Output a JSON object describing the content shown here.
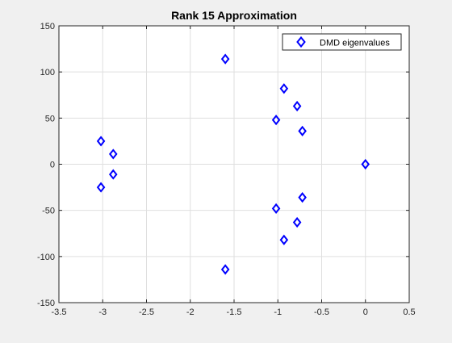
{
  "chart_data": {
    "type": "scatter",
    "title": "Rank 15 Approximation",
    "xlabel": "",
    "ylabel": "",
    "xlim": [
      -3.5,
      0.5
    ],
    "ylim": [
      -150,
      150
    ],
    "xticks": [
      -3.5,
      -3,
      -2.5,
      -2,
      -1.5,
      -1,
      -0.5,
      0,
      0.5
    ],
    "xtick_labels": [
      "-3.5",
      "-3",
      "-2.5",
      "-2",
      "-1.5",
      "-1",
      "-0.5",
      "0",
      "0.5"
    ],
    "yticks": [
      -150,
      -100,
      -50,
      0,
      50,
      100,
      150
    ],
    "ytick_labels": [
      "-150",
      "-100",
      "-50",
      "0",
      "50",
      "100",
      "150"
    ],
    "grid": true,
    "legend_position": "top-right",
    "series": [
      {
        "name": "DMD eigenvalues",
        "color": "#0000ff",
        "marker": "diamond",
        "points": [
          {
            "x": -3.02,
            "y": 25
          },
          {
            "x": -3.02,
            "y": -25
          },
          {
            "x": -2.88,
            "y": 11
          },
          {
            "x": -2.88,
            "y": -11
          },
          {
            "x": -1.6,
            "y": 114
          },
          {
            "x": -1.6,
            "y": -114
          },
          {
            "x": -1.02,
            "y": 48
          },
          {
            "x": -1.02,
            "y": -48
          },
          {
            "x": -0.93,
            "y": 82
          },
          {
            "x": -0.93,
            "y": -82
          },
          {
            "x": -0.78,
            "y": 63
          },
          {
            "x": -0.78,
            "y": -63
          },
          {
            "x": -0.72,
            "y": 36
          },
          {
            "x": -0.72,
            "y": -36
          },
          {
            "x": 0.0,
            "y": 0
          }
        ]
      }
    ]
  }
}
